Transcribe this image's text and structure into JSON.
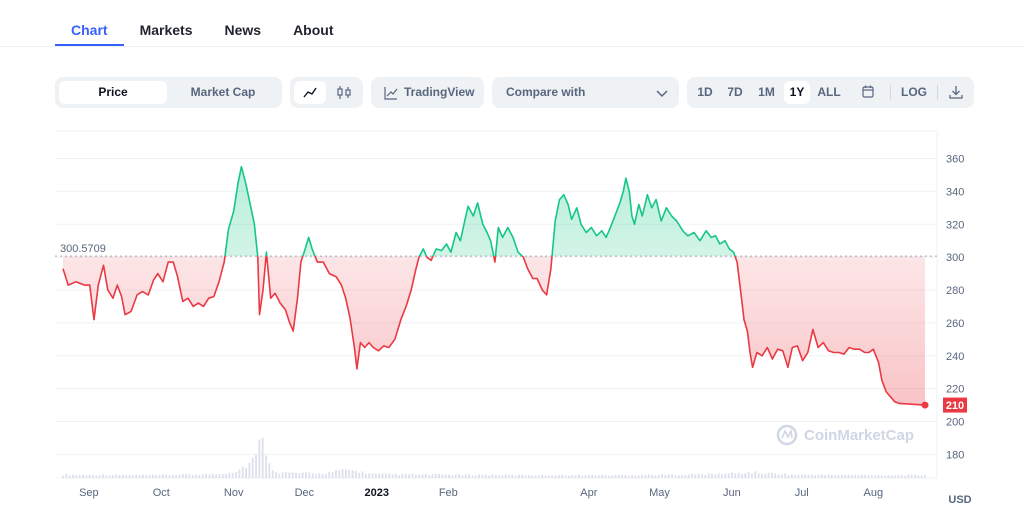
{
  "tabs": [
    {
      "label": "Chart",
      "active": true
    },
    {
      "label": "Markets",
      "active": false
    },
    {
      "label": "News",
      "active": false
    },
    {
      "label": "About",
      "active": false
    }
  ],
  "toolbar": {
    "view_options": [
      {
        "label": "Price",
        "active": true
      },
      {
        "label": "Market Cap",
        "active": false
      }
    ],
    "chart_type_icons": [
      "line-chart-icon",
      "candlestick-icon"
    ],
    "tradingview_label": "TradingView",
    "compare_placeholder": "Compare with",
    "ranges": [
      {
        "label": "1D",
        "active": false
      },
      {
        "label": "7D",
        "active": false
      },
      {
        "label": "1M",
        "active": false
      },
      {
        "label": "1Y",
        "active": true
      },
      {
        "label": "ALL",
        "active": false
      }
    ],
    "calendar_icon": "calendar-icon",
    "log_label": "LOG",
    "download_icon": "download-icon"
  },
  "colors": {
    "up": "#16c784",
    "down": "#ea3943",
    "accent": "#3861fb",
    "grid": "#eff2f5",
    "text_muted": "#58667e"
  },
  "chart_data": {
    "type": "area",
    "baseline": 300.5709,
    "baseline_label": "300.5709",
    "current_price": 210,
    "current_label": "210",
    "currency": "USD",
    "watermark": "CoinMarketCap",
    "y_ticks": [
      180,
      200,
      220,
      240,
      260,
      280,
      300,
      320,
      340,
      360
    ],
    "ylim": [
      160,
      370
    ],
    "x_ticks": [
      {
        "label": "Sep",
        "t": 0.03,
        "bold": false
      },
      {
        "label": "Oct",
        "t": 0.114,
        "bold": false
      },
      {
        "label": "Nov",
        "t": 0.198,
        "bold": false
      },
      {
        "label": "Dec",
        "t": 0.28,
        "bold": false
      },
      {
        "label": "2023",
        "t": 0.364,
        "bold": true
      },
      {
        "label": "Feb",
        "t": 0.447,
        "bold": false
      },
      {
        "label": "Apr",
        "t": 0.61,
        "bold": false
      },
      {
        "label": "May",
        "t": 0.692,
        "bold": false
      },
      {
        "label": "Jun",
        "t": 0.776,
        "bold": false
      },
      {
        "label": "Jul",
        "t": 0.857,
        "bold": false
      },
      {
        "label": "Aug",
        "t": 0.94,
        "bold": false
      }
    ],
    "price": [
      [
        0.0,
        293
      ],
      [
        0.006,
        283
      ],
      [
        0.015,
        285
      ],
      [
        0.025,
        283
      ],
      [
        0.031,
        283
      ],
      [
        0.036,
        262
      ],
      [
        0.041,
        283
      ],
      [
        0.047,
        295
      ],
      [
        0.052,
        280
      ],
      [
        0.058,
        275
      ],
      [
        0.063,
        283
      ],
      [
        0.068,
        276
      ],
      [
        0.072,
        265
      ],
      [
        0.079,
        267
      ],
      [
        0.086,
        277
      ],
      [
        0.092,
        279
      ],
      [
        0.099,
        277
      ],
      [
        0.105,
        286
      ],
      [
        0.11,
        290
      ],
      [
        0.116,
        285
      ],
      [
        0.122,
        297
      ],
      [
        0.128,
        297
      ],
      [
        0.133,
        288
      ],
      [
        0.139,
        273
      ],
      [
        0.145,
        275
      ],
      [
        0.151,
        270
      ],
      [
        0.157,
        272
      ],
      [
        0.163,
        270
      ],
      [
        0.169,
        275
      ],
      [
        0.175,
        276
      ],
      [
        0.181,
        285
      ],
      [
        0.187,
        297
      ],
      [
        0.192,
        317
      ],
      [
        0.198,
        328
      ],
      [
        0.203,
        345
      ],
      [
        0.207,
        355
      ],
      [
        0.212,
        345
      ],
      [
        0.216,
        335
      ],
      [
        0.222,
        320
      ],
      [
        0.226,
        300
      ],
      [
        0.228,
        265
      ],
      [
        0.232,
        280
      ],
      [
        0.236,
        303
      ],
      [
        0.241,
        275
      ],
      [
        0.246,
        278
      ],
      [
        0.252,
        272
      ],
      [
        0.258,
        268
      ],
      [
        0.263,
        260
      ],
      [
        0.267,
        255
      ],
      [
        0.272,
        275
      ],
      [
        0.276,
        297
      ],
      [
        0.281,
        305
      ],
      [
        0.285,
        312
      ],
      [
        0.289,
        305
      ],
      [
        0.295,
        297
      ],
      [
        0.302,
        297
      ],
      [
        0.309,
        290
      ],
      [
        0.317,
        288
      ],
      [
        0.323,
        283
      ],
      [
        0.328,
        275
      ],
      [
        0.333,
        263
      ],
      [
        0.338,
        245
      ],
      [
        0.341,
        232
      ],
      [
        0.345,
        248
      ],
      [
        0.35,
        245
      ],
      [
        0.355,
        248
      ],
      [
        0.36,
        245
      ],
      [
        0.366,
        243
      ],
      [
        0.372,
        246
      ],
      [
        0.378,
        245
      ],
      [
        0.385,
        250
      ],
      [
        0.392,
        262
      ],
      [
        0.398,
        270
      ],
      [
        0.404,
        280
      ],
      [
        0.409,
        292
      ],
      [
        0.413,
        300
      ],
      [
        0.418,
        305
      ],
      [
        0.422,
        300
      ],
      [
        0.427,
        298
      ],
      [
        0.433,
        305
      ],
      [
        0.439,
        304
      ],
      [
        0.445,
        308
      ],
      [
        0.45,
        303
      ],
      [
        0.456,
        315
      ],
      [
        0.461,
        310
      ],
      [
        0.466,
        322
      ],
      [
        0.47,
        331
      ],
      [
        0.476,
        325
      ],
      [
        0.481,
        333
      ],
      [
        0.487,
        320
      ],
      [
        0.492,
        315
      ],
      [
        0.496,
        310
      ],
      [
        0.501,
        297
      ],
      [
        0.505,
        318
      ],
      [
        0.51,
        312
      ],
      [
        0.516,
        318
      ],
      [
        0.522,
        312
      ],
      [
        0.528,
        303
      ],
      [
        0.534,
        300
      ],
      [
        0.539,
        293
      ],
      [
        0.545,
        287
      ],
      [
        0.55,
        287
      ],
      [
        0.556,
        280
      ],
      [
        0.561,
        277
      ],
      [
        0.566,
        293
      ],
      [
        0.571,
        322
      ],
      [
        0.576,
        335
      ],
      [
        0.581,
        338
      ],
      [
        0.586,
        332
      ],
      [
        0.59,
        323
      ],
      [
        0.596,
        330
      ],
      [
        0.601,
        320
      ],
      [
        0.607,
        315
      ],
      [
        0.613,
        318
      ],
      [
        0.619,
        313
      ],
      [
        0.625,
        316
      ],
      [
        0.63,
        312
      ],
      [
        0.635,
        318
      ],
      [
        0.641,
        326
      ],
      [
        0.646,
        333
      ],
      [
        0.65,
        340
      ],
      [
        0.653,
        348
      ],
      [
        0.657,
        340
      ],
      [
        0.66,
        325
      ],
      [
        0.663,
        320
      ],
      [
        0.668,
        332
      ],
      [
        0.672,
        325
      ],
      [
        0.678,
        338
      ],
      [
        0.683,
        330
      ],
      [
        0.688,
        335
      ],
      [
        0.694,
        322
      ],
      [
        0.7,
        330
      ],
      [
        0.706,
        325
      ],
      [
        0.712,
        322
      ],
      [
        0.719,
        316
      ],
      [
        0.725,
        313
      ],
      [
        0.732,
        315
      ],
      [
        0.739,
        310
      ],
      [
        0.746,
        316
      ],
      [
        0.752,
        312
      ],
      [
        0.757,
        313
      ],
      [
        0.762,
        308
      ],
      [
        0.768,
        310
      ],
      [
        0.773,
        305
      ],
      [
        0.778,
        303
      ],
      [
        0.782,
        297
      ],
      [
        0.786,
        280
      ],
      [
        0.79,
        262
      ],
      [
        0.794,
        255
      ],
      [
        0.797,
        242
      ],
      [
        0.8,
        233
      ],
      [
        0.805,
        242
      ],
      [
        0.811,
        240
      ],
      [
        0.817,
        245
      ],
      [
        0.823,
        238
      ],
      [
        0.829,
        244
      ],
      [
        0.835,
        243
      ],
      [
        0.841,
        233
      ],
      [
        0.846,
        245
      ],
      [
        0.852,
        246
      ],
      [
        0.858,
        237
      ],
      [
        0.864,
        242
      ],
      [
        0.87,
        256
      ],
      [
        0.876,
        245
      ],
      [
        0.882,
        248
      ],
      [
        0.888,
        243
      ],
      [
        0.894,
        242
      ],
      [
        0.9,
        242
      ],
      [
        0.906,
        241
      ],
      [
        0.912,
        245
      ],
      [
        0.918,
        244
      ],
      [
        0.924,
        244
      ],
      [
        0.93,
        242
      ],
      [
        0.935,
        242
      ],
      [
        0.94,
        244
      ],
      [
        0.946,
        236
      ],
      [
        0.95,
        225
      ],
      [
        0.955,
        218
      ],
      [
        0.96,
        215
      ],
      [
        0.965,
        212
      ],
      [
        0.97,
        211
      ],
      [
        1.0,
        210
      ]
    ],
    "volume": [
      [
        0.0,
        0.06
      ],
      [
        0.1,
        0.05
      ],
      [
        0.18,
        0.07
      ],
      [
        0.2,
        0.12
      ],
      [
        0.215,
        0.25
      ],
      [
        0.225,
        0.4
      ],
      [
        0.232,
        0.9
      ],
      [
        0.238,
        0.25
      ],
      [
        0.25,
        0.1
      ],
      [
        0.3,
        0.08
      ],
      [
        0.33,
        0.15
      ],
      [
        0.36,
        0.07
      ],
      [
        0.45,
        0.06
      ],
      [
        0.55,
        0.05
      ],
      [
        0.65,
        0.05
      ],
      [
        0.75,
        0.07
      ],
      [
        0.8,
        0.1
      ],
      [
        0.85,
        0.06
      ],
      [
        0.95,
        0.05
      ],
      [
        1.0,
        0.05
      ]
    ]
  }
}
